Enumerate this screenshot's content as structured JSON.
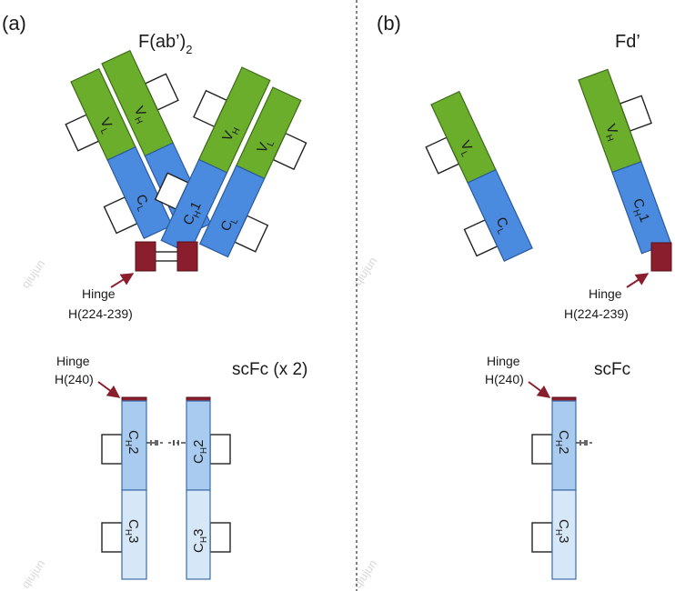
{
  "panels": {
    "a": {
      "label": "(a)",
      "title_main": "F(ab’)",
      "title_sub": "2",
      "hinge_label": "Hinge",
      "hinge_range": "H(224-239)",
      "fc_hinge_label": "Hinge",
      "fc_hinge_pos": "H(240)",
      "fc_title": "scFc (x 2)"
    },
    "b": {
      "label": "(b)",
      "title": "Fd’",
      "hinge_label": "Hinge",
      "hinge_range": "H(224-239)",
      "fc_hinge_label": "Hinge",
      "fc_hinge_pos": "H(240)",
      "fc_title": "scFc"
    }
  },
  "domains": {
    "vh_main": "V",
    "vh_sub": "H",
    "vl_main": "V",
    "vl_sub": "L",
    "ch1_main": "C",
    "ch1_sub": "H",
    "ch1_tail": "1",
    "cl_main": "C",
    "cl_sub": "L",
    "ch2_main": "C",
    "ch2_sub": "H",
    "ch2_tail": "2",
    "ch3_main": "C",
    "ch3_sub": "H",
    "ch3_tail": "3"
  },
  "watermark": "qiujun",
  "colors": {
    "variable": "#6aae2c",
    "constant_fab": "#4a8be0",
    "ch2": "#a9cbf0",
    "ch3": "#d6e7f8",
    "hinge": "#8b1e2d",
    "arrow": "#8b1e2d"
  }
}
